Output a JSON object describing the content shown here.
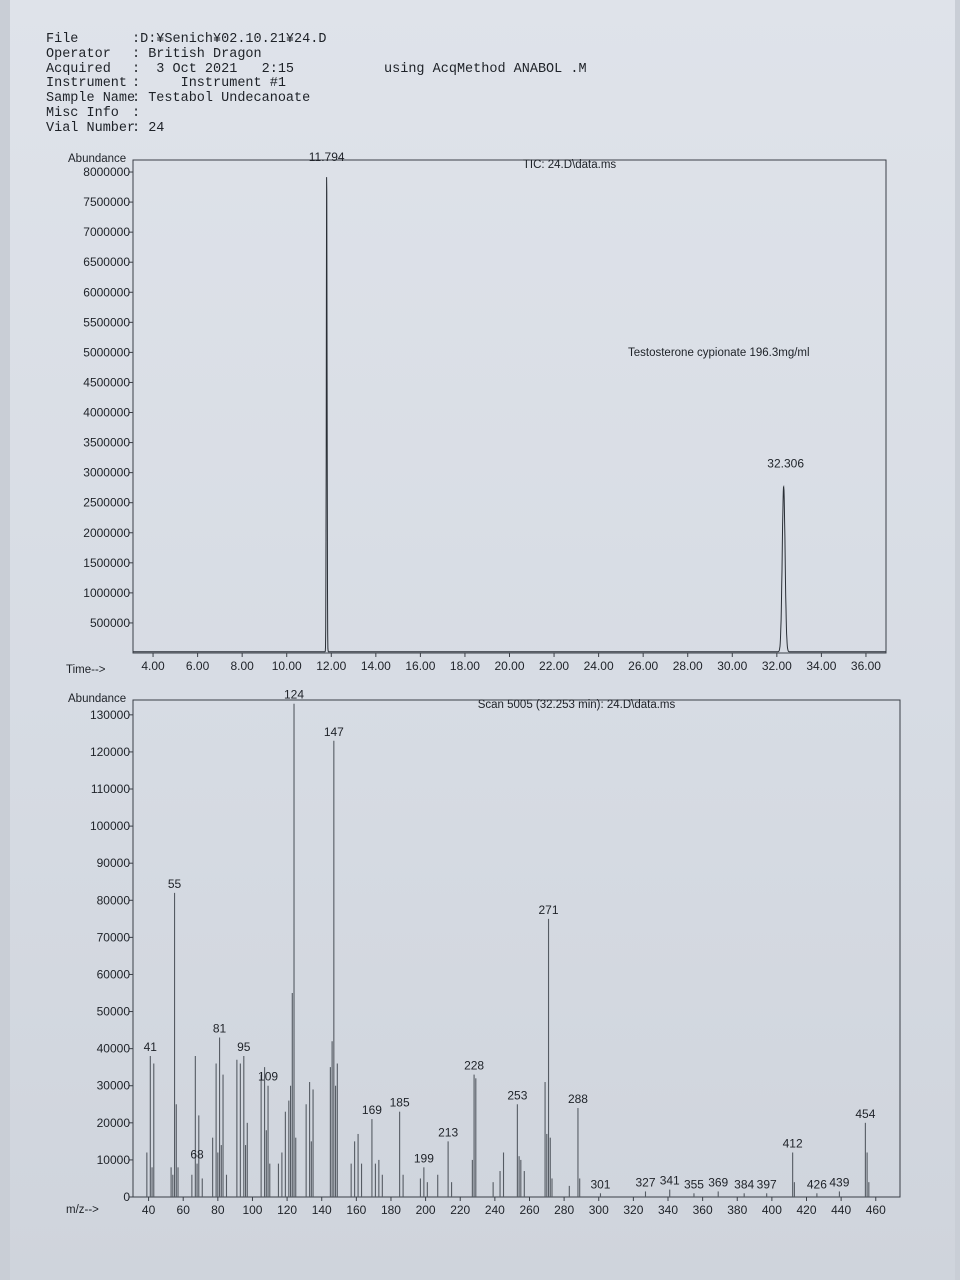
{
  "header": {
    "rows": [
      {
        "key": "File",
        "value": ":D:¥Senich¥02.10.21¥24.D"
      },
      {
        "key": "Operator",
        "value": ": British Dragon"
      },
      {
        "key": "Acquired",
        "value": ":  3 Oct 2021   2:15",
        "extra": "using AcqMethod ANABOL .M"
      },
      {
        "key": "Instrument",
        "value": ":     Instrument #1"
      },
      {
        "key": "Sample Name",
        "value": ": Testabol Undecanoate"
      },
      {
        "key": "Misc Info",
        "value": ":"
      },
      {
        "key": "Vial Number",
        "value": ": 24"
      }
    ]
  },
  "chart_data": [
    {
      "type": "line",
      "title": "TIC: 24.D\\data.ms",
      "ylabel": "Abundance",
      "xlabel": "Time-->",
      "xlim": [
        3.1,
        36.9
      ],
      "ylim": [
        0,
        8200000
      ],
      "xticks": [
        "4.00",
        "6.00",
        "8.00",
        "10.00",
        "12.00",
        "14.00",
        "16.00",
        "18.00",
        "20.00",
        "22.00",
        "24.00",
        "26.00",
        "28.00",
        "30.00",
        "32.00",
        "34.00",
        "36.00"
      ],
      "yticks": [
        500000,
        1000000,
        1500000,
        2000000,
        2500000,
        3000000,
        3500000,
        4000000,
        4500000,
        5000000,
        5500000,
        6000000,
        6500000,
        7000000,
        7500000,
        8000000
      ],
      "peaks": [
        {
          "rt": 11.794,
          "abundance": 8100000,
          "label": "11.794"
        },
        {
          "rt": 32.306,
          "abundance": 2750000,
          "label": "32.306"
        }
      ],
      "annotation": "Testosterone cypionate 196.3mg/ml",
      "grid": false
    },
    {
      "type": "bar",
      "title": "Scan 5005 (32.253 min): 24.D\\data.ms",
      "ylabel": "Abundance",
      "xlabel": "m/z-->",
      "xlim": [
        31,
        474
      ],
      "ylim": [
        0,
        134000
      ],
      "xticks": [
        40,
        60,
        80,
        100,
        120,
        140,
        160,
        180,
        200,
        220,
        240,
        260,
        280,
        300,
        320,
        340,
        360,
        380,
        400,
        420,
        440,
        460
      ],
      "yticks": [
        0,
        10000,
        20000,
        30000,
        40000,
        50000,
        60000,
        70000,
        80000,
        90000,
        100000,
        110000,
        120000,
        130000
      ],
      "peaks": [
        [
          39,
          12000
        ],
        [
          41,
          38000
        ],
        [
          42,
          8000
        ],
        [
          43,
          36000
        ],
        [
          53,
          8000
        ],
        [
          54,
          6000
        ],
        [
          55,
          82000
        ],
        [
          56,
          25000
        ],
        [
          57,
          8000
        ],
        [
          65,
          6000
        ],
        [
          67,
          38000
        ],
        [
          68,
          9000
        ],
        [
          69,
          22000
        ],
        [
          71,
          5000
        ],
        [
          77,
          16000
        ],
        [
          79,
          36000
        ],
        [
          80,
          12000
        ],
        [
          81,
          43000
        ],
        [
          82,
          14000
        ],
        [
          83,
          33000
        ],
        [
          85,
          6000
        ],
        [
          91,
          37000
        ],
        [
          93,
          36000
        ],
        [
          95,
          38000
        ],
        [
          96,
          14000
        ],
        [
          97,
          20000
        ],
        [
          105,
          33000
        ],
        [
          107,
          35000
        ],
        [
          108,
          18000
        ],
        [
          109,
          30000
        ],
        [
          110,
          9000
        ],
        [
          115,
          9000
        ],
        [
          117,
          12000
        ],
        [
          119,
          23000
        ],
        [
          121,
          26000
        ],
        [
          122,
          30000
        ],
        [
          123,
          55000
        ],
        [
          124,
          133000
        ],
        [
          125,
          16000
        ],
        [
          131,
          25000
        ],
        [
          133,
          31000
        ],
        [
          134,
          15000
        ],
        [
          135,
          29000
        ],
        [
          145,
          35000
        ],
        [
          146,
          42000
        ],
        [
          147,
          123000
        ],
        [
          148,
          30000
        ],
        [
          149,
          36000
        ],
        [
          157,
          9000
        ],
        [
          159,
          15000
        ],
        [
          161,
          17000
        ],
        [
          163,
          9000
        ],
        [
          169,
          21000
        ],
        [
          171,
          9000
        ],
        [
          173,
          10000
        ],
        [
          175,
          6000
        ],
        [
          185,
          23000
        ],
        [
          187,
          6000
        ],
        [
          197,
          5000
        ],
        [
          199,
          8000
        ],
        [
          201,
          4000
        ],
        [
          207,
          6000
        ],
        [
          213,
          15000
        ],
        [
          215,
          4000
        ],
        [
          227,
          10000
        ],
        [
          228,
          33000
        ],
        [
          229,
          32000
        ],
        [
          239,
          4000
        ],
        [
          243,
          7000
        ],
        [
          245,
          12000
        ],
        [
          253,
          25000
        ],
        [
          254,
          11000
        ],
        [
          255,
          10000
        ],
        [
          257,
          7000
        ],
        [
          269,
          31000
        ],
        [
          270,
          17000
        ],
        [
          271,
          75000
        ],
        [
          272,
          16000
        ],
        [
          273,
          5000
        ],
        [
          283,
          3000
        ],
        [
          288,
          24000
        ],
        [
          289,
          5000
        ],
        [
          301,
          1000
        ],
        [
          327,
          1500
        ],
        [
          341,
          2000
        ],
        [
          355,
          1000
        ],
        [
          369,
          1500
        ],
        [
          384,
          1000
        ],
        [
          397,
          1000
        ],
        [
          412,
          12000
        ],
        [
          413,
          4000
        ],
        [
          426,
          1000
        ],
        [
          439,
          1500
        ],
        [
          454,
          20000
        ],
        [
          455,
          12000
        ],
        [
          456,
          4000
        ]
      ],
      "labels": [
        {
          "mz": 41,
          "text": "41"
        },
        {
          "mz": 55,
          "text": "55"
        },
        {
          "mz": 68,
          "text": "68"
        },
        {
          "mz": 81,
          "text": "81"
        },
        {
          "mz": 95,
          "text": "95"
        },
        {
          "mz": 109,
          "text": "109"
        },
        {
          "mz": 124,
          "text": "124"
        },
        {
          "mz": 147,
          "text": "147"
        },
        {
          "mz": 169,
          "text": "169"
        },
        {
          "mz": 185,
          "text": "185"
        },
        {
          "mz": 199,
          "text": "199"
        },
        {
          "mz": 213,
          "text": "213"
        },
        {
          "mz": 228,
          "text": "228"
        },
        {
          "mz": 253,
          "text": "253"
        },
        {
          "mz": 271,
          "text": "271"
        },
        {
          "mz": 288,
          "text": "288"
        },
        {
          "mz": 301,
          "text": "301"
        },
        {
          "mz": 327,
          "text": "327"
        },
        {
          "mz": 341,
          "text": "341"
        },
        {
          "mz": 355,
          "text": "355"
        },
        {
          "mz": 369,
          "text": "369"
        },
        {
          "mz": 384,
          "text": "384"
        },
        {
          "mz": 397,
          "text": "397"
        },
        {
          "mz": 412,
          "text": "412"
        },
        {
          "mz": 426,
          "text": "426"
        },
        {
          "mz": 439,
          "text": "439"
        },
        {
          "mz": 454,
          "text": "454"
        }
      ],
      "grid": false
    }
  ]
}
